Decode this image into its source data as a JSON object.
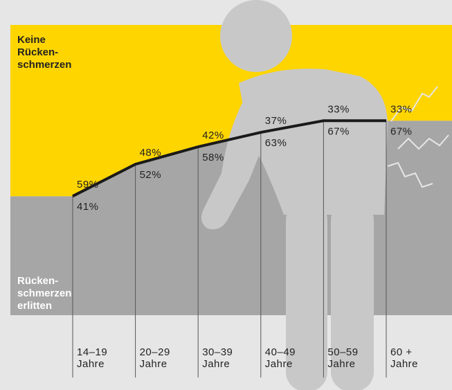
{
  "chart_data": {
    "type": "stacked_area",
    "categories": [
      [
        "14–19",
        "Jahre"
      ],
      [
        "20–29",
        "Jahre"
      ],
      [
        "30–39",
        "Jahre"
      ],
      [
        "40–49",
        "Jahre"
      ],
      [
        "50–59",
        "Jahre"
      ],
      [
        "60 +",
        "Jahre"
      ]
    ],
    "series": [
      {
        "name": [
          "Rücken-",
          "schmerzen",
          "erlitten"
        ],
        "color": "#a6a6a6",
        "values": [
          41,
          52,
          58,
          63,
          67,
          67
        ],
        "value_labels": [
          "41%",
          "52%",
          "58%",
          "63%",
          "67%",
          "67%"
        ]
      },
      {
        "name": [
          "Keine",
          "Rücken-",
          "schmerzen"
        ],
        "color": "#ffd500",
        "values": [
          59,
          48,
          42,
          37,
          33,
          33
        ],
        "value_labels": [
          "59%",
          "48%",
          "42%",
          "37%",
          "33%",
          "33%"
        ]
      }
    ],
    "ylim": [
      0,
      100
    ]
  }
}
